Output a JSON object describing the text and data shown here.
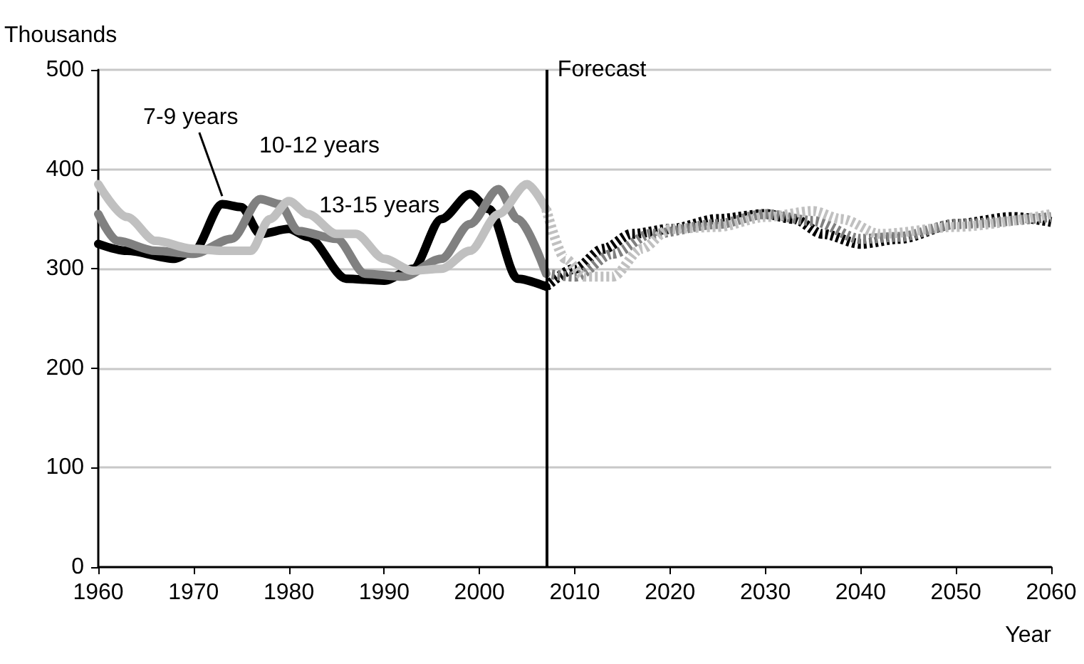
{
  "chart_data": {
    "type": "line",
    "ylabel": "Thousands",
    "xlabel": "Year",
    "xlim": [
      1960,
      2060
    ],
    "xticks": [
      1960,
      1970,
      1980,
      1990,
      2000,
      2010,
      2020,
      2030,
      2040,
      2050,
      2060
    ],
    "ylim": [
      0,
      500
    ],
    "yticks": [
      0,
      100,
      200,
      300,
      400,
      500
    ],
    "grid": "y",
    "legend": false,
    "marker": "none",
    "series": [
      {
        "name": "7-9 years",
        "color": "#000000",
        "line_style": "solid",
        "x": [
          1960,
          1963,
          1968,
          1970,
          1973,
          1975,
          1977,
          1980,
          1982,
          1986,
          1990,
          1993,
          1996,
          1999,
          2001,
          2004,
          2007
        ],
        "values": [
          325,
          318,
          310,
          318,
          365,
          362,
          335,
          340,
          332,
          290,
          288,
          300,
          350,
          375,
          360,
          290,
          282
        ]
      },
      {
        "name": "10-12 years",
        "color": "#808080",
        "line_style": "solid",
        "x": [
          1960,
          1962,
          1966,
          1970,
          1974,
          1977,
          1979,
          1981,
          1985,
          1988,
          1992,
          1996,
          1999,
          2002,
          2004,
          2007
        ],
        "values": [
          355,
          328,
          318,
          315,
          330,
          370,
          365,
          338,
          330,
          295,
          292,
          310,
          345,
          380,
          350,
          295
        ]
      },
      {
        "name": "13-15 years",
        "color": "#c0c0c0",
        "line_style": "solid",
        "x": [
          1960,
          1963,
          1966,
          1970,
          1973,
          1976,
          1978,
          1980,
          1982,
          1985,
          1987,
          1990,
          1993,
          1996,
          1999,
          2002,
          2005,
          2007
        ],
        "values": [
          385,
          352,
          328,
          320,
          318,
          318,
          350,
          368,
          355,
          335,
          335,
          310,
          298,
          300,
          318,
          355,
          385,
          360
        ]
      },
      {
        "color": "#000000",
        "line_style": "dotted",
        "x": [
          2007,
          2010,
          2013,
          2016,
          2020,
          2025,
          2030,
          2033,
          2036,
          2040,
          2044,
          2050,
          2056,
          2060
        ],
        "values": [
          282,
          300,
          320,
          335,
          340,
          350,
          355,
          350,
          335,
          325,
          330,
          345,
          352,
          347
        ]
      },
      {
        "color": "#808080",
        "line_style": "dotted",
        "x": [
          2007,
          2010,
          2014,
          2018,
          2025,
          2030,
          2035,
          2040,
          2044,
          2050,
          2060
        ],
        "values": [
          295,
          292,
          315,
          335,
          345,
          355,
          348,
          330,
          332,
          345,
          352
        ]
      },
      {
        "color": "#c0c0c0",
        "line_style": "dotted",
        "x": [
          2007,
          2009,
          2011,
          2014,
          2017,
          2020,
          2025,
          2030,
          2035,
          2038,
          2042,
          2050,
          2060
        ],
        "values": [
          360,
          310,
          292,
          292,
          320,
          340,
          342,
          352,
          358,
          350,
          335,
          342,
          355
        ]
      }
    ],
    "ref_lines": [
      {
        "axis": "x",
        "value": 2007,
        "label": "Forecast",
        "color": "#000000"
      }
    ]
  }
}
